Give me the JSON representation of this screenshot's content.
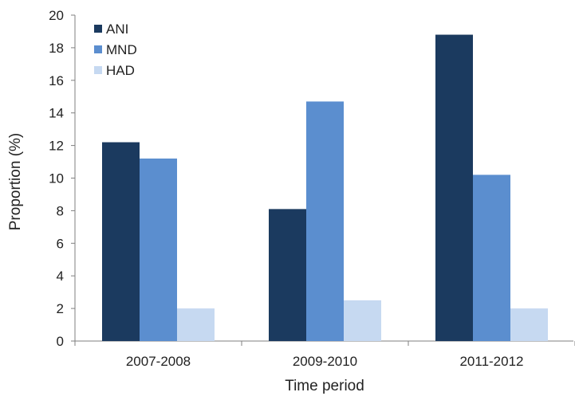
{
  "chart_data": {
    "type": "bar",
    "title": "",
    "xlabel": "Time period",
    "ylabel": "Proportion (%)",
    "ylim": [
      0,
      20
    ],
    "yticks": [
      0,
      2,
      4,
      6,
      8,
      10,
      12,
      14,
      16,
      18,
      20
    ],
    "categories": [
      "2007-2008",
      "2009-2010",
      "2011-2012"
    ],
    "series": [
      {
        "name": "ANI",
        "color": "#1b3a5f",
        "values": [
          12.2,
          8.1,
          18.8
        ]
      },
      {
        "name": "MND",
        "color": "#5b8ecf",
        "values": [
          11.2,
          14.7,
          10.2
        ]
      },
      {
        "name": "HAD",
        "color": "#c6d9f1",
        "values": [
          2.0,
          2.5,
          2.0
        ]
      }
    ],
    "grid": false,
    "legend_position": "top-left"
  }
}
